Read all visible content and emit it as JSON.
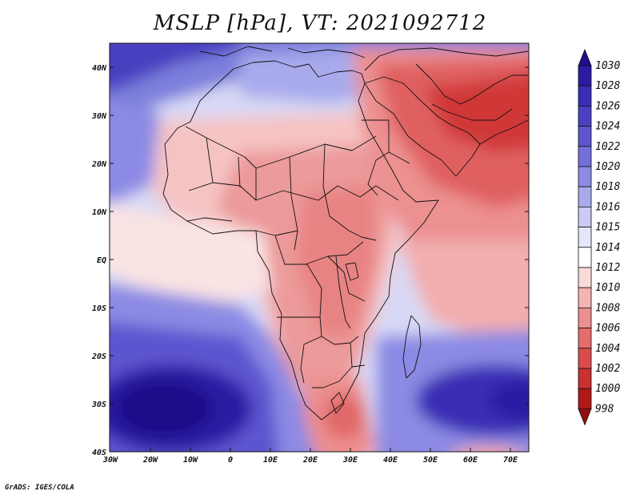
{
  "title": "MSLP [hPa], VT: 2021092712",
  "credit": "GrADS: IGES/COLA",
  "lat_labels": [
    "40N",
    "30N",
    "20N",
    "10N",
    "EQ",
    "10S",
    "20S",
    "30S",
    "40S"
  ],
  "lon_labels": [
    "30W",
    "20W",
    "10W",
    "0",
    "10E",
    "20E",
    "30E",
    "40E",
    "50E",
    "60E",
    "70E"
  ],
  "colorbar": {
    "levels": [
      "1030",
      "1028",
      "1026",
      "1024",
      "1022",
      "1020",
      "1018",
      "1016",
      "1015",
      "1014",
      "1012",
      "1010",
      "1008",
      "1006",
      "1004",
      "1002",
      "1000",
      "998"
    ],
    "colors": [
      "#1f0d8f",
      "#2a1ba3",
      "#3a2db5",
      "#4b40c2",
      "#5e55ce",
      "#7470da",
      "#8c8ae4",
      "#a9aaec",
      "#c9cbf3",
      "#e6e6fa",
      "#ffffff",
      "#fbdada",
      "#f4b4b4",
      "#ec8f8f",
      "#e46c6c",
      "#db4b4b",
      "#c93030",
      "#b01818",
      "#921010"
    ],
    "top_arrow_color": "#1f0d8f",
    "bottom_arrow_color": "#921010"
  }
}
